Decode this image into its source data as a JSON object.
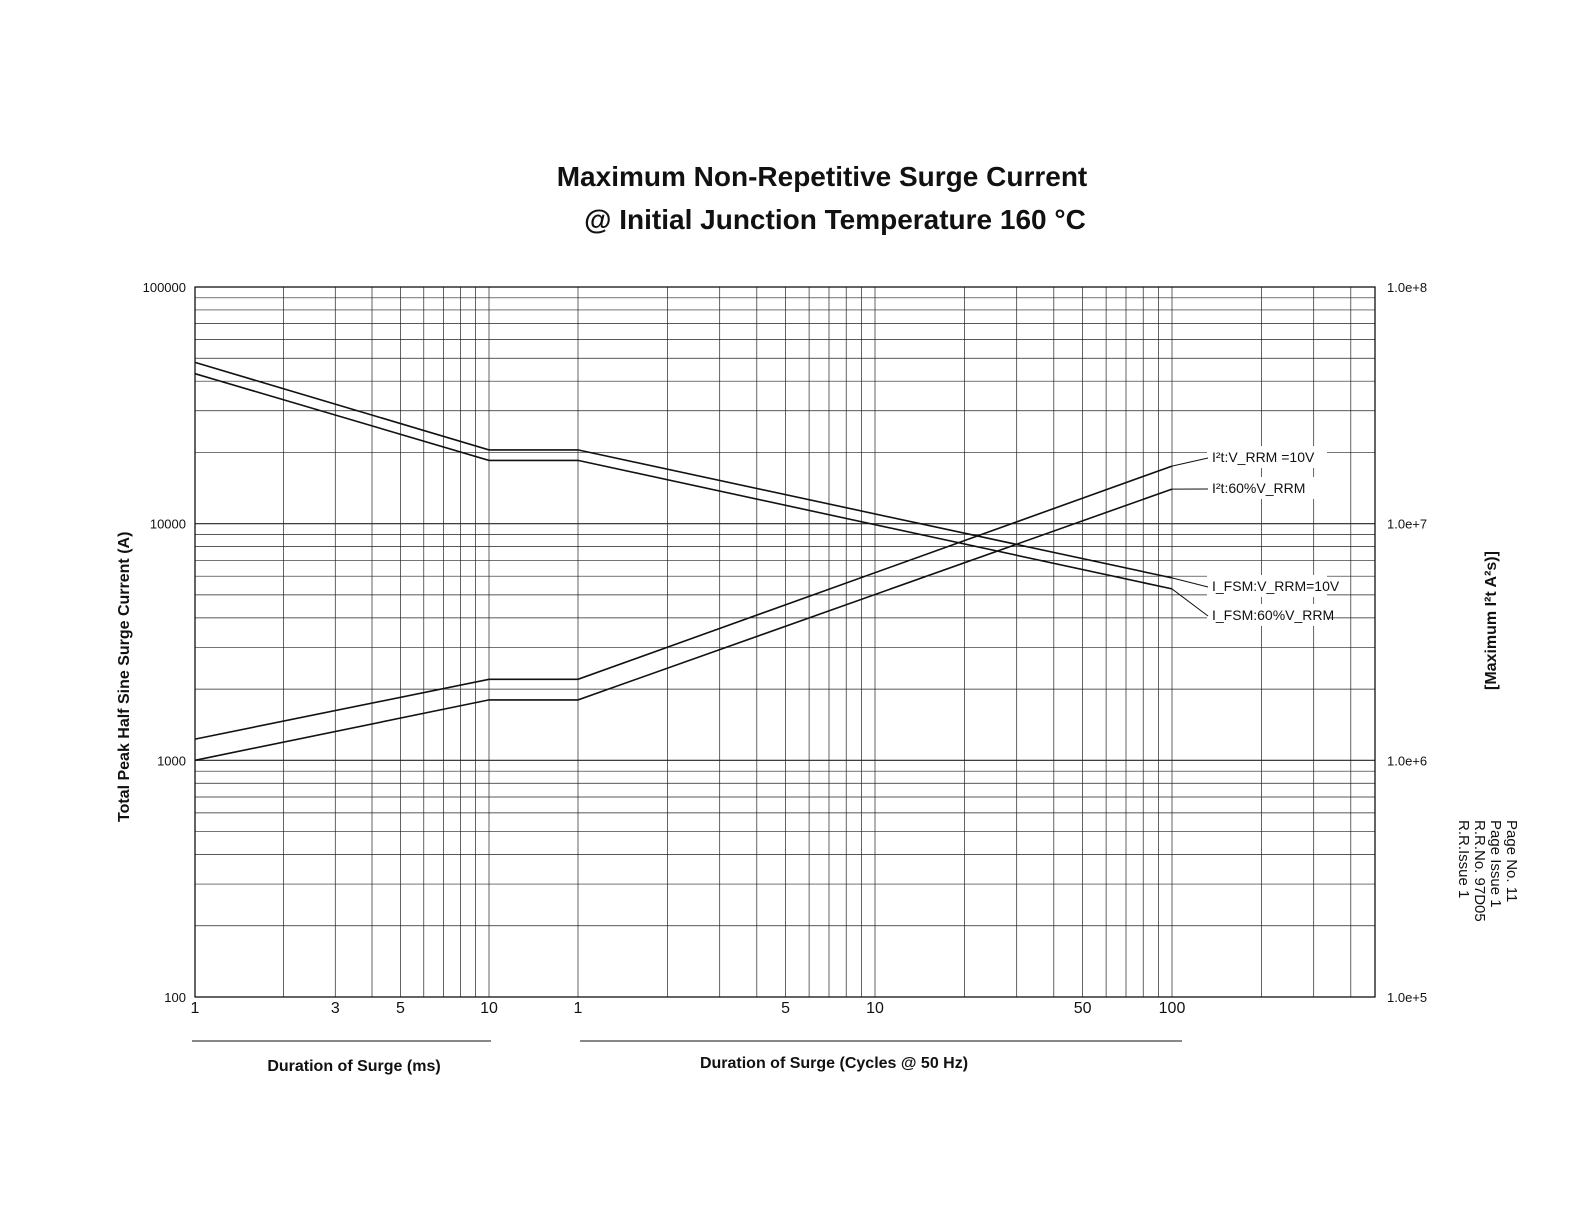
{
  "chart_data": {
    "type": "line",
    "title": "Maximum Non-Repetitive Surge Current",
    "subtitle": "@ Initial Junction Temperature 160 °C",
    "ylabel": "Total Peak Half Sine Surge Current (A)",
    "ylabel_right": "[Maximum I²t A²s)]",
    "y_scale": "log",
    "ylim": [
      100,
      100000
    ],
    "y_ticks": [
      "100",
      "1000",
      "10000",
      "100000"
    ],
    "y2_scale": "log",
    "y2lim": [
      100000,
      100000000
    ],
    "y2_ticks": [
      "1.0e+5",
      "1.0e+6",
      "1.0e+7",
      "1.0e+8"
    ],
    "x_segments": [
      {
        "label": "Duration of Surge (ms)",
        "scale": "log",
        "range": [
          1,
          10
        ],
        "ticks": [
          "1",
          "3",
          "5",
          "10"
        ]
      },
      {
        "label": "Duration of Surge (Cycles @ 50 Hz)",
        "scale": "log",
        "range": [
          1,
          100
        ],
        "ticks": [
          "1",
          "5",
          "10",
          "50",
          "100"
        ]
      }
    ],
    "series": [
      {
        "name": "I_FSM:V_RRM=10V",
        "axis": "left",
        "points": [
          [
            "1 ms",
            48000
          ],
          [
            "10 ms",
            20500
          ],
          [
            "1 cyc",
            20500
          ],
          [
            "100 cyc",
            5900
          ]
        ]
      },
      {
        "name": "I_FSM:60%V_RRM",
        "axis": "left",
        "points": [
          [
            "1 ms",
            43000
          ],
          [
            "10 ms",
            18500
          ],
          [
            "1 cyc",
            18500
          ],
          [
            "100 cyc",
            5300
          ]
        ]
      },
      {
        "name": "I²t:V_RRM =10V",
        "axis": "right",
        "points": [
          [
            "1 ms",
            1230000
          ],
          [
            "10 ms",
            2200000
          ],
          [
            "1 cyc",
            2200000
          ],
          [
            "100 cyc",
            17500000
          ]
        ]
      },
      {
        "name": "I²t:60%V_RRM",
        "axis": "right",
        "points": [
          [
            "1 ms",
            1000000
          ],
          [
            "10 ms",
            1800000
          ],
          [
            "1 cyc",
            1800000
          ],
          [
            "100 cyc",
            14000000
          ]
        ]
      }
    ],
    "grid": true
  },
  "footer": {
    "lines": [
      "Page No.     11",
      "Page Issue    1",
      "R.R.No.   97D05",
      "R.R.Issue      1"
    ]
  }
}
